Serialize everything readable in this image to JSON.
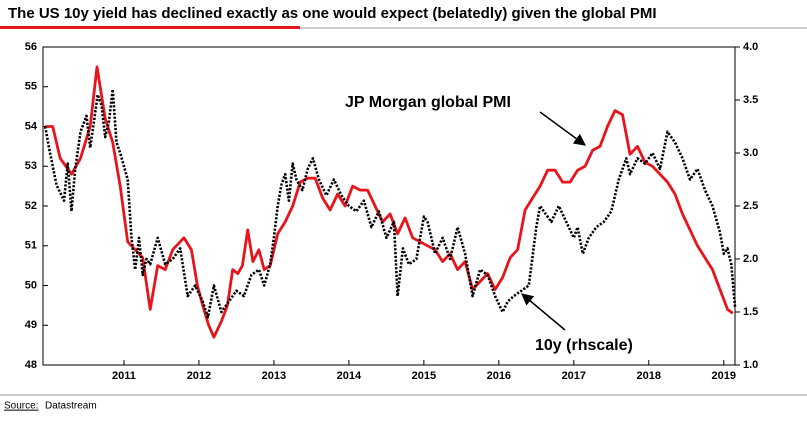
{
  "chart_data": {
    "type": "line",
    "title": "The US 10y yield has declined exactly as one would expect (belatedly) given the global PMI",
    "source_label": "Source:",
    "source": "Datastream",
    "annotations": [
      "JP Morgan global PMI",
      "10y (rhscale)"
    ],
    "xlim": [
      2009.92,
      2019.15
    ],
    "xticks": [
      2011,
      2012,
      2013,
      2014,
      2015,
      2016,
      2017,
      2018,
      2019
    ],
    "ylim": [
      48,
      56
    ],
    "yticks": [
      48,
      49,
      50,
      51,
      52,
      53,
      54,
      55,
      56
    ],
    "y2lim": [
      1,
      4
    ],
    "y2ticks": [
      {
        "value": 1,
        "label": "1.0"
      },
      1.5,
      {
        "value": 2,
        "label": "2.0"
      },
      2.5,
      {
        "value": 3,
        "label": "3.0"
      },
      3.5,
      {
        "value": 4,
        "label": "4.0"
      }
    ],
    "series": [
      {
        "color": "#e8141b",
        "style": "solid",
        "x": [
          2009.95,
          2010.05,
          2010.15,
          2010.3,
          2010.42,
          2010.55,
          2010.64,
          2010.75,
          2010.85,
          2010.95,
          2011.05,
          2011.15,
          2011.25,
          2011.35,
          2011.45,
          2011.55,
          2011.65,
          2011.8,
          2011.9,
          2011.98,
          2012.05,
          2012.13,
          2012.2,
          2012.3,
          2012.38,
          2012.45,
          2012.52,
          2012.58,
          2012.65,
          2012.72,
          2012.8,
          2012.87,
          2012.95,
          2013.05,
          2013.15,
          2013.25,
          2013.35,
          2013.45,
          2013.55,
          2013.65,
          2013.75,
          2013.85,
          2013.95,
          2014.05,
          2014.15,
          2014.25,
          2014.35,
          2014.45,
          2014.55,
          2014.65,
          2014.75,
          2014.85,
          2014.95,
          2015.05,
          2015.15,
          2015.25,
          2015.35,
          2015.45,
          2015.55,
          2015.65,
          2015.75,
          2015.85,
          2015.95,
          2016.05,
          2016.15,
          2016.25,
          2016.35,
          2016.45,
          2016.55,
          2016.65,
          2016.75,
          2016.85,
          2016.95,
          2017.05,
          2017.15,
          2017.25,
          2017.35,
          2017.45,
          2017.55,
          2017.65,
          2017.75,
          2017.85,
          2017.95,
          2018.05,
          2018.15,
          2018.25,
          2018.35,
          2018.45,
          2018.55,
          2018.65,
          2018.75,
          2018.85,
          2018.95,
          2019.05,
          2019.12
        ],
        "values": [
          54.0,
          54.0,
          53.2,
          52.8,
          53.2,
          54.0,
          55.5,
          54.2,
          53.6,
          52.5,
          51.1,
          50.9,
          50.7,
          49.4,
          50.5,
          50.4,
          50.9,
          51.2,
          50.9,
          50.0,
          49.5,
          49.0,
          48.7,
          49.1,
          49.5,
          50.4,
          50.3,
          50.5,
          51.4,
          50.6,
          50.9,
          50.4,
          50.5,
          51.3,
          51.6,
          52.0,
          52.6,
          52.7,
          52.7,
          52.2,
          51.9,
          52.3,
          52.0,
          52.5,
          52.4,
          52.4,
          52.0,
          51.6,
          51.8,
          51.3,
          51.7,
          51.2,
          51.1,
          51.0,
          50.9,
          50.6,
          50.8,
          50.4,
          50.6,
          49.9,
          50.1,
          50.3,
          49.9,
          50.2,
          50.7,
          50.9,
          51.9,
          52.2,
          52.5,
          52.9,
          52.9,
          52.6,
          52.6,
          52.9,
          53.0,
          53.4,
          53.5,
          54.0,
          54.4,
          54.3,
          53.3,
          53.5,
          53.1,
          53.0,
          52.8,
          52.6,
          52.3,
          51.8,
          51.4,
          51.0,
          50.7,
          50.4,
          49.9,
          49.4,
          49.3
        ]
      },
      {
        "color": "#000000",
        "style": "dotted",
        "axis": "y2",
        "x": [
          2009.95,
          2010.0,
          2010.1,
          2010.2,
          2010.25,
          2010.3,
          2010.35,
          2010.42,
          2010.5,
          2010.55,
          2010.6,
          2010.65,
          2010.7,
          2010.75,
          2010.8,
          2010.85,
          2010.9,
          2010.95,
          2011.05,
          2011.1,
          2011.15,
          2011.2,
          2011.25,
          2011.3,
          2011.35,
          2011.45,
          2011.55,
          2011.65,
          2011.75,
          2011.85,
          2011.95,
          2012.05,
          2012.12,
          2012.2,
          2012.3,
          2012.4,
          2012.5,
          2012.6,
          2012.7,
          2012.8,
          2012.87,
          2012.95,
          2013.0,
          2013.05,
          2013.1,
          2013.15,
          2013.2,
          2013.25,
          2013.3,
          2013.38,
          2013.45,
          2013.52,
          2013.6,
          2013.7,
          2013.8,
          2013.9,
          2014.0,
          2014.1,
          2014.2,
          2014.3,
          2014.4,
          2014.5,
          2014.6,
          2014.65,
          2014.72,
          2014.8,
          2014.9,
          2015.0,
          2015.05,
          2015.15,
          2015.25,
          2015.35,
          2015.45,
          2015.55,
          2015.65,
          2015.75,
          2015.85,
          2015.95,
          2016.05,
          2016.12,
          2016.2,
          2016.3,
          2016.4,
          2016.5,
          2016.55,
          2016.6,
          2016.7,
          2016.8,
          2016.9,
          2017.0,
          2017.05,
          2017.12,
          2017.2,
          2017.3,
          2017.4,
          2017.5,
          2017.6,
          2017.7,
          2017.75,
          2017.85,
          2017.95,
          2018.05,
          2018.15,
          2018.25,
          2018.35,
          2018.45,
          2018.55,
          2018.65,
          2018.75,
          2018.85,
          2018.95,
          2019.0,
          2019.05,
          2019.1,
          2019.15
        ],
        "values": [
          3.25,
          3.05,
          2.7,
          2.55,
          2.9,
          2.45,
          2.85,
          3.2,
          3.35,
          3.05,
          3.3,
          3.55,
          3.45,
          3.15,
          3.3,
          3.6,
          3.1,
          3.0,
          2.75,
          2.2,
          1.9,
          2.2,
          1.85,
          2.0,
          1.95,
          2.2,
          1.95,
          2.0,
          2.1,
          1.65,
          1.75,
          1.6,
          1.45,
          1.75,
          1.5,
          1.6,
          1.7,
          1.65,
          1.85,
          1.9,
          1.75,
          1.95,
          2.2,
          2.5,
          2.7,
          2.8,
          2.55,
          2.9,
          2.75,
          2.65,
          2.85,
          2.95,
          2.75,
          2.6,
          2.75,
          2.6,
          2.5,
          2.45,
          2.55,
          2.3,
          2.45,
          2.2,
          2.35,
          1.65,
          2.1,
          1.95,
          2.0,
          2.4,
          2.35,
          2.05,
          2.2,
          2.0,
          2.3,
          2.05,
          1.65,
          1.9,
          1.85,
          1.65,
          1.5,
          1.6,
          1.65,
          1.7,
          1.75,
          2.3,
          2.5,
          2.45,
          2.35,
          2.5,
          2.35,
          2.2,
          2.3,
          2.05,
          2.2,
          2.3,
          2.35,
          2.45,
          2.75,
          2.95,
          2.8,
          2.95,
          2.9,
          3.0,
          2.85,
          3.2,
          3.1,
          2.95,
          2.75,
          2.85,
          2.65,
          2.5,
          2.25,
          2.05,
          2.1,
          1.95,
          1.55
        ]
      }
    ]
  }
}
